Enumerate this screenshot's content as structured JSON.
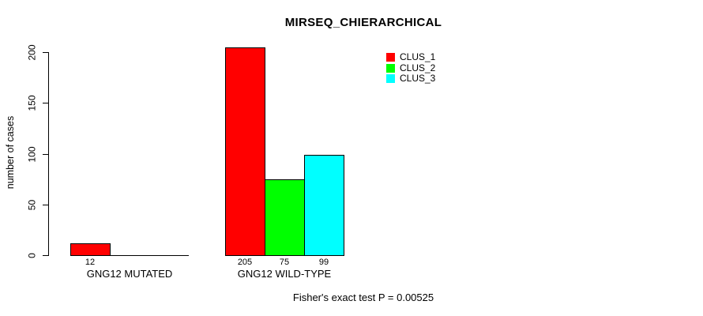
{
  "chart_data": {
    "type": "bar",
    "title": "MIRSEQ_CHIERARCHICAL",
    "xlabel": "",
    "ylabel": "number of cases",
    "categories": [
      "GNG12 MUTATED",
      "GNG12 WILD-TYPE"
    ],
    "series": [
      {
        "name": "CLUS_1",
        "color": "#ff0000",
        "values": [
          12,
          205
        ]
      },
      {
        "name": "CLUS_2",
        "color": "#00ff00",
        "values": [
          0,
          75
        ]
      },
      {
        "name": "CLUS_3",
        "color": "#00ffff",
        "values": [
          0,
          99
        ]
      }
    ],
    "bar_value_labels": [
      [
        "12",
        "",
        ""
      ],
      [
        "205",
        "75",
        "99"
      ]
    ],
    "yticks": [
      0,
      50,
      100,
      150,
      200
    ],
    "ylim": [
      0,
      205
    ],
    "grid": false,
    "legend_position": "top-right",
    "annotation": "Fisher's exact test P = 0.00525"
  },
  "colors": {
    "background": "#ffffff",
    "text": "#000000",
    "axis": "#000000",
    "bar_border": "#000000"
  }
}
